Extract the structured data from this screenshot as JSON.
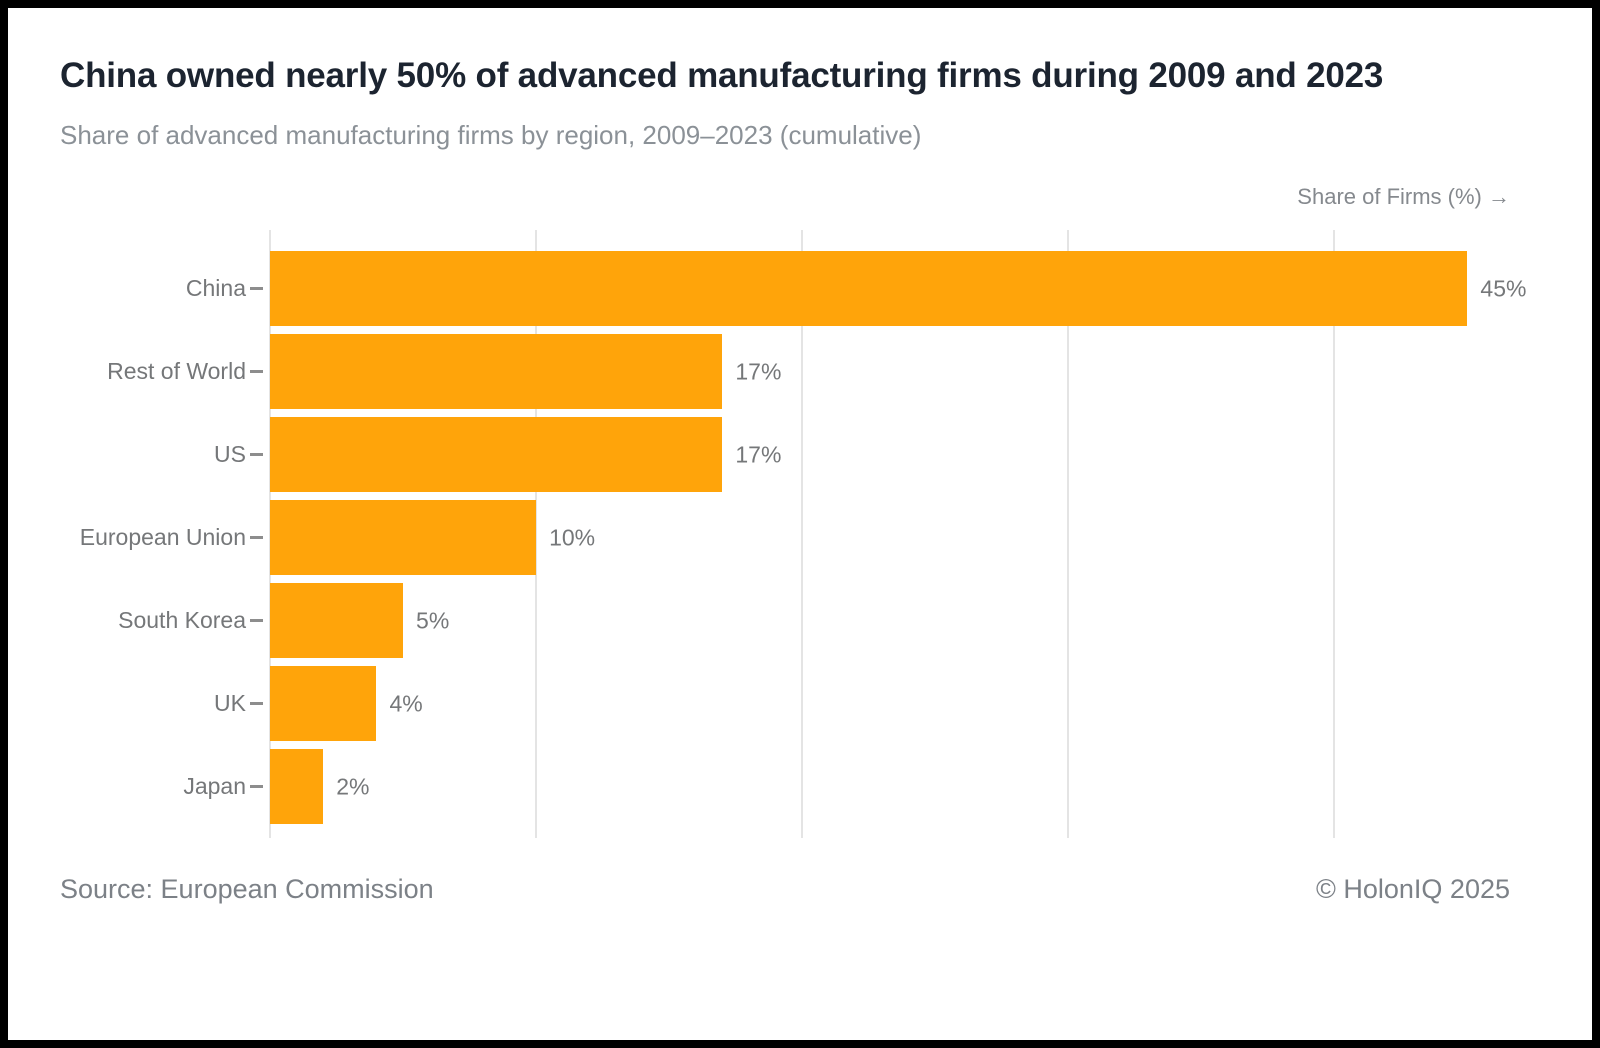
{
  "header": {
    "title": "China owned nearly 50% of advanced manufacturing firms during 2009 and 2023",
    "subtitle": "Share of advanced manufacturing firms by region, 2009–2023 (cumulative)"
  },
  "chart_data": {
    "type": "bar",
    "orientation": "horizontal",
    "title": "China owned nearly 50% of advanced manufacturing firms during 2009 and 2023",
    "subtitle": "Share of advanced manufacturing firms by region, 2009–2023 (cumulative)",
    "axis_label": "Share of Firms (%) →",
    "categories": [
      "China",
      "Rest of World",
      "US",
      "European Union",
      "South Korea",
      "UK",
      "Japan"
    ],
    "values": [
      45,
      17,
      17,
      10,
      5,
      4,
      2
    ],
    "value_labels": [
      "45%",
      "17%",
      "17%",
      "10%",
      "5%",
      "4%",
      "2%"
    ],
    "xlim": [
      0,
      46.6
    ],
    "gridlines": [
      0,
      10,
      20,
      30,
      40
    ],
    "grid": true,
    "legend": "none",
    "bar_color": "#FFA40A",
    "label_color": "#757779",
    "grid_color": "#E4E4E4"
  },
  "footer": {
    "source": "Source: European Commission",
    "copyright": "© HolonIQ 2025"
  }
}
